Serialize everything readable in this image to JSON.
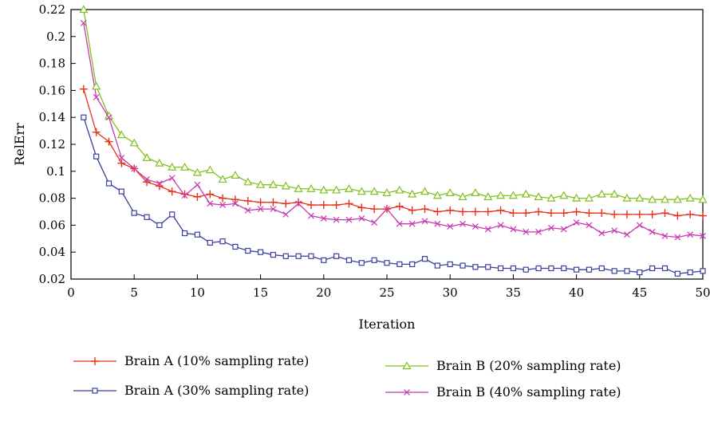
{
  "chart_data": {
    "type": "line",
    "xlabel": "Iteration",
    "ylabel": "RelErr",
    "xlim": [
      0,
      50
    ],
    "ylim": [
      0.02,
      0.22
    ],
    "xticks": [
      0,
      5,
      10,
      15,
      20,
      25,
      30,
      35,
      40,
      45,
      50
    ],
    "yticks": [
      0.02,
      0.04,
      0.06,
      0.08,
      0.1,
      0.12,
      0.14,
      0.16,
      0.18,
      0.2,
      0.22
    ],
    "ytick_labels": [
      "0.02",
      "0.04",
      "0.06",
      "0.08",
      "0.1",
      "0.12",
      "0.14",
      "0.16",
      "0.18",
      "0.2",
      "0.22"
    ],
    "grid": false,
    "legend_position": "bottom",
    "series": [
      {
        "name": "Brain A (10% sampling rate)",
        "color": "#e8311a",
        "marker": "plus",
        "values": [
          0.161,
          0.129,
          0.122,
          0.106,
          0.102,
          0.092,
          0.089,
          0.085,
          0.083,
          0.081,
          0.083,
          0.08,
          0.079,
          0.078,
          0.077,
          0.077,
          0.076,
          0.077,
          0.075,
          0.075,
          0.075,
          0.076,
          0.073,
          0.072,
          0.072,
          0.074,
          0.071,
          0.072,
          0.07,
          0.071,
          0.07,
          0.07,
          0.07,
          0.071,
          0.069,
          0.069,
          0.07,
          0.069,
          0.069,
          0.07,
          0.069,
          0.069,
          0.068,
          0.068,
          0.068,
          0.068,
          0.069,
          0.067,
          0.068,
          0.067
        ]
      },
      {
        "name": "Brain A (30% sampling rate)",
        "color": "#3a3f9e",
        "marker": "square",
        "values": [
          0.14,
          0.111,
          0.091,
          0.085,
          0.069,
          0.066,
          0.06,
          0.068,
          0.054,
          0.053,
          0.047,
          0.048,
          0.044,
          0.041,
          0.04,
          0.038,
          0.037,
          0.037,
          0.037,
          0.034,
          0.037,
          0.034,
          0.032,
          0.034,
          0.032,
          0.031,
          0.031,
          0.035,
          0.03,
          0.031,
          0.03,
          0.029,
          0.029,
          0.028,
          0.028,
          0.027,
          0.028,
          0.028,
          0.028,
          0.027,
          0.027,
          0.028,
          0.026,
          0.026,
          0.025,
          0.028,
          0.028,
          0.024,
          0.025,
          0.026
        ]
      },
      {
        "name": "Brain B (20% sampling rate)",
        "color": "#7dc21e",
        "marker": "triangle",
        "values": [
          0.22,
          0.163,
          0.141,
          0.127,
          0.121,
          0.11,
          0.106,
          0.103,
          0.103,
          0.099,
          0.101,
          0.094,
          0.097,
          0.092,
          0.09,
          0.09,
          0.089,
          0.087,
          0.087,
          0.086,
          0.086,
          0.087,
          0.085,
          0.085,
          0.084,
          0.086,
          0.083,
          0.085,
          0.082,
          0.084,
          0.081,
          0.084,
          0.081,
          0.082,
          0.082,
          0.083,
          0.081,
          0.08,
          0.082,
          0.08,
          0.08,
          0.083,
          0.083,
          0.08,
          0.08,
          0.079,
          0.079,
          0.079,
          0.08,
          0.079
        ]
      },
      {
        "name": "Brain B (40% sampling rate)",
        "color": "#c43bb0",
        "marker": "x",
        "values": [
          0.21,
          0.155,
          0.14,
          0.11,
          0.102,
          0.094,
          0.091,
          0.095,
          0.082,
          0.09,
          0.076,
          0.075,
          0.076,
          0.071,
          0.072,
          0.072,
          0.068,
          0.076,
          0.067,
          0.065,
          0.064,
          0.064,
          0.065,
          0.062,
          0.072,
          0.061,
          0.061,
          0.063,
          0.061,
          0.059,
          0.061,
          0.059,
          0.057,
          0.06,
          0.057,
          0.055,
          0.055,
          0.058,
          0.057,
          0.062,
          0.06,
          0.054,
          0.056,
          0.053,
          0.06,
          0.055,
          0.052,
          0.051,
          0.053,
          0.052
        ]
      }
    ]
  }
}
